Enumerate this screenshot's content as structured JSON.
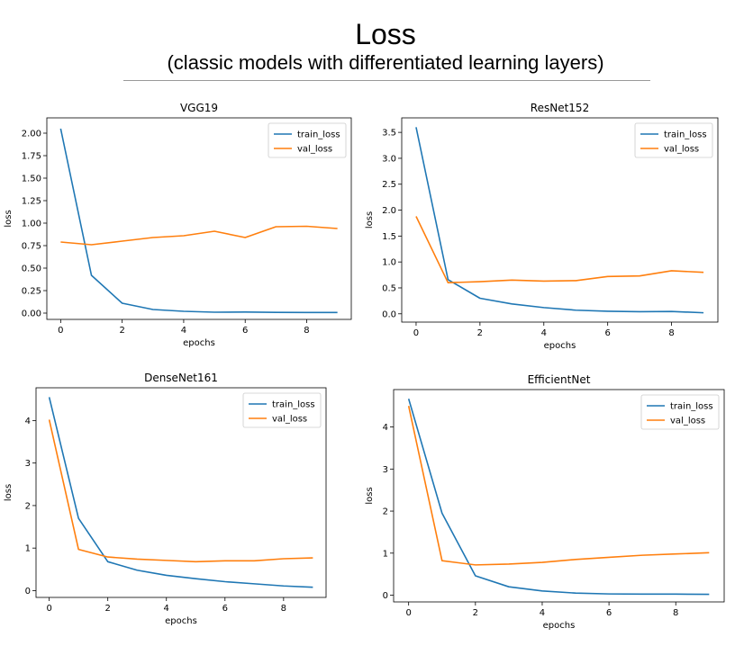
{
  "figure": {
    "title": "Loss",
    "subtitle": "(classic models with differentiated learning layers)"
  },
  "colors": {
    "train": "#1f77b4",
    "val": "#ff7f0e"
  },
  "chart_data": [
    {
      "type": "line",
      "title": "VGG19",
      "xlabel": "epochs",
      "ylabel": "loss",
      "x": [
        0,
        1,
        2,
        3,
        4,
        5,
        6,
        7,
        8,
        9
      ],
      "xlim": [
        -0.45,
        9.45
      ],
      "ylim": [
        -0.07,
        2.17
      ],
      "xticks": [
        0,
        2,
        4,
        6,
        8
      ],
      "yticks": [
        0.0,
        0.25,
        0.5,
        0.75,
        1.0,
        1.25,
        1.5,
        1.75,
        2.0
      ],
      "ytick_labels": [
        "0.00",
        "0.25",
        "0.50",
        "0.75",
        "1.00",
        "1.25",
        "1.50",
        "1.75",
        "2.00"
      ],
      "legend": "top-right",
      "series": [
        {
          "name": "train_loss",
          "values": [
            2.05,
            0.42,
            0.11,
            0.04,
            0.02,
            0.01,
            0.012,
            0.008,
            0.007,
            0.007
          ]
        },
        {
          "name": "val_loss",
          "values": [
            0.79,
            0.76,
            0.8,
            0.84,
            0.86,
            0.91,
            0.84,
            0.96,
            0.965,
            0.94
          ]
        }
      ]
    },
    {
      "type": "line",
      "title": "ResNet152",
      "xlabel": "epochs",
      "ylabel": "loss",
      "x": [
        0,
        1,
        2,
        3,
        4,
        5,
        6,
        7,
        8,
        9
      ],
      "xlim": [
        -0.45,
        9.45
      ],
      "ylim": [
        -0.16,
        3.78
      ],
      "xticks": [
        0,
        2,
        4,
        6,
        8
      ],
      "yticks": [
        0.0,
        0.5,
        1.0,
        1.5,
        2.0,
        2.5,
        3.0,
        3.5
      ],
      "ytick_labels": [
        "0.0",
        "0.5",
        "1.0",
        "1.5",
        "2.0",
        "2.5",
        "3.0",
        "3.5"
      ],
      "legend": "top-right",
      "series": [
        {
          "name": "train_loss",
          "values": [
            3.6,
            0.66,
            0.3,
            0.19,
            0.12,
            0.07,
            0.05,
            0.04,
            0.045,
            0.02
          ]
        },
        {
          "name": "val_loss",
          "values": [
            1.88,
            0.6,
            0.62,
            0.65,
            0.63,
            0.64,
            0.72,
            0.73,
            0.83,
            0.8
          ]
        }
      ]
    },
    {
      "type": "line",
      "title": "DenseNet161",
      "xlabel": "epochs",
      "ylabel": "loss",
      "x": [
        0,
        1,
        2,
        3,
        4,
        5,
        6,
        7,
        8,
        9
      ],
      "xlim": [
        -0.45,
        9.45
      ],
      "ylim": [
        -0.16,
        4.77
      ],
      "xticks": [
        0,
        2,
        4,
        6,
        8
      ],
      "yticks": [
        0,
        1,
        2,
        3,
        4
      ],
      "ytick_labels": [
        "0",
        "1",
        "2",
        "3",
        "4"
      ],
      "legend": "top-right",
      "series": [
        {
          "name": "train_loss",
          "values": [
            4.55,
            1.7,
            0.68,
            0.48,
            0.36,
            0.28,
            0.21,
            0.16,
            0.11,
            0.08
          ]
        },
        {
          "name": "val_loss",
          "values": [
            4.02,
            0.97,
            0.79,
            0.74,
            0.71,
            0.68,
            0.7,
            0.7,
            0.75,
            0.77
          ]
        }
      ]
    },
    {
      "type": "line",
      "title": "EfficientNet",
      "xlabel": "epochs",
      "ylabel": "loss",
      "x": [
        0,
        1,
        2,
        3,
        4,
        5,
        6,
        7,
        8,
        9
      ],
      "xlim": [
        -0.45,
        9.45
      ],
      "ylim": [
        -0.16,
        4.89
      ],
      "xticks": [
        0,
        2,
        4,
        6,
        8
      ],
      "yticks": [
        0,
        1,
        2,
        3,
        4
      ],
      "ytick_labels": [
        "0",
        "1",
        "2",
        "3",
        "4"
      ],
      "legend": "top-right",
      "series": [
        {
          "name": "train_loss",
          "values": [
            4.67,
            1.95,
            0.46,
            0.2,
            0.1,
            0.05,
            0.03,
            0.025,
            0.025,
            0.02
          ]
        },
        {
          "name": "val_loss",
          "values": [
            4.5,
            0.82,
            0.72,
            0.74,
            0.78,
            0.85,
            0.9,
            0.95,
            0.98,
            1.01
          ]
        }
      ]
    }
  ]
}
